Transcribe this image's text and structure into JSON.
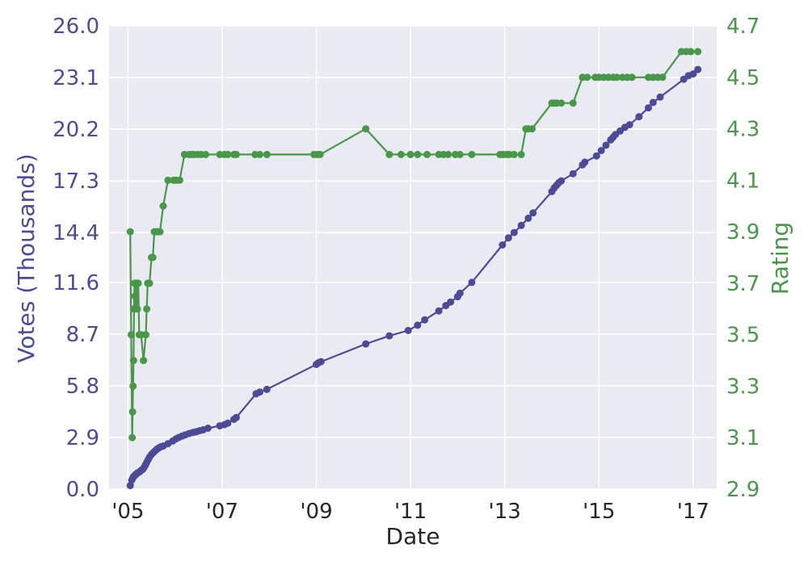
{
  "chart_data": {
    "type": "line",
    "xlabel": "Date",
    "ylabel_left": "Votes (Thousands)",
    "ylabel_right": "Rating",
    "x_ticks": [
      {
        "label": "'05",
        "year": 2005
      },
      {
        "label": "'07",
        "year": 2007
      },
      {
        "label": "'09",
        "year": 2009
      },
      {
        "label": "'11",
        "year": 2011
      },
      {
        "label": "'13",
        "year": 2013
      },
      {
        "label": "'15",
        "year": 2015
      },
      {
        "label": "'17",
        "year": 2017
      }
    ],
    "xlim": [
      2004.6,
      2017.5
    ],
    "y_left_ticks": [
      "0.0",
      "2.9",
      "5.8",
      "8.7",
      "11.6",
      "14.4",
      "17.3",
      "20.2",
      "23.1",
      "26.0"
    ],
    "ylim_left": [
      0,
      26.0
    ],
    "y_right_ticks": [
      "2.9",
      "3.1",
      "3.3",
      "3.5",
      "3.7",
      "3.9",
      "4.1",
      "4.3",
      "4.5",
      "4.7"
    ],
    "ylim_right": [
      2.9,
      4.7
    ],
    "grid": true,
    "colors": {
      "votes": "#4c4c96",
      "rating": "#4a964a",
      "background": "#eaeaf2",
      "grid": "#ffffff"
    },
    "series": [
      {
        "key": "votes",
        "axis": "left",
        "x": [
          2005.05,
          2005.08,
          2005.1,
          2005.12,
          2005.14,
          2005.16,
          2005.18,
          2005.2,
          2005.22,
          2005.25,
          2005.28,
          2005.31,
          2005.34,
          2005.37,
          2005.4,
          2005.43,
          2005.46,
          2005.5,
          2005.54,
          2005.58,
          2005.62,
          2005.66,
          2005.7,
          2005.75,
          2005.85,
          2005.95,
          2006.02,
          2006.08,
          2006.15,
          2006.22,
          2006.3,
          2006.38,
          2006.45,
          2006.52,
          2006.6,
          2006.7,
          2006.95,
          2007.05,
          2007.12,
          2007.25,
          2007.3,
          2007.72,
          2007.8,
          2007.95,
          2009.0,
          2009.05,
          2009.1,
          2010.05,
          2010.55,
          2010.95,
          2011.15,
          2011.3,
          2011.6,
          2011.75,
          2011.85,
          2012.0,
          2012.05,
          2012.3,
          2012.95,
          2013.08,
          2013.2,
          2013.35,
          2013.5,
          2013.6,
          2014.0,
          2014.05,
          2014.1,
          2014.15,
          2014.2,
          2014.45,
          2014.65,
          2014.7,
          2014.95,
          2015.05,
          2015.15,
          2015.25,
          2015.3,
          2015.35,
          2015.45,
          2015.55,
          2015.65,
          2015.85,
          2016.05,
          2016.15,
          2016.3,
          2016.8,
          2016.9,
          2017.0,
          2017.1
        ],
        "y": [
          0.2,
          0.5,
          0.6,
          0.7,
          0.75,
          0.8,
          0.85,
          0.9,
          0.93,
          0.98,
          1.05,
          1.1,
          1.2,
          1.35,
          1.5,
          1.65,
          1.8,
          1.95,
          2.05,
          2.15,
          2.25,
          2.32,
          2.38,
          2.42,
          2.55,
          2.7,
          2.82,
          2.9,
          2.98,
          3.05,
          3.12,
          3.18,
          3.22,
          3.28,
          3.33,
          3.42,
          3.55,
          3.62,
          3.7,
          3.92,
          4.02,
          5.35,
          5.45,
          5.6,
          7.0,
          7.1,
          7.15,
          8.15,
          8.6,
          8.9,
          9.2,
          9.5,
          10.0,
          10.3,
          10.5,
          10.8,
          11.0,
          11.6,
          13.7,
          14.1,
          14.4,
          14.8,
          15.2,
          15.5,
          16.7,
          16.9,
          17.05,
          17.2,
          17.3,
          17.7,
          18.2,
          18.35,
          18.7,
          19.0,
          19.3,
          19.6,
          19.75,
          19.9,
          20.1,
          20.3,
          20.45,
          20.9,
          21.4,
          21.7,
          22.0,
          23.0,
          23.2,
          23.3,
          23.55
        ]
      },
      {
        "key": "rating",
        "axis": "right",
        "x": [
          2005.05,
          2005.07,
          2005.09,
          2005.1,
          2005.11,
          2005.12,
          2005.13,
          2005.14,
          2005.15,
          2005.17,
          2005.18,
          2005.2,
          2005.22,
          2005.24,
          2005.28,
          2005.33,
          2005.38,
          2005.4,
          2005.42,
          2005.44,
          2005.46,
          2005.5,
          2005.53,
          2005.56,
          2005.6,
          2005.64,
          2005.68,
          2005.75,
          2005.85,
          2005.97,
          2006.02,
          2006.1,
          2006.2,
          2006.3,
          2006.35,
          2006.4,
          2006.48,
          2006.55,
          2006.65,
          2006.95,
          2007.05,
          2007.12,
          2007.25,
          2007.3,
          2007.7,
          2007.8,
          2007.95,
          2008.95,
          2009.02,
          2009.08,
          2010.05,
          2010.55,
          2010.8,
          2011.0,
          2011.15,
          2011.35,
          2011.6,
          2011.7,
          2011.8,
          2011.95,
          2012.05,
          2012.3,
          2012.9,
          2012.97,
          2013.05,
          2013.1,
          2013.2,
          2013.35,
          2013.45,
          2013.5,
          2013.58,
          2014.0,
          2014.05,
          2014.1,
          2014.2,
          2014.45,
          2014.65,
          2014.75,
          2014.92,
          2015.0,
          2015.1,
          2015.2,
          2015.3,
          2015.38,
          2015.5,
          2015.6,
          2015.7,
          2016.05,
          2016.15,
          2016.25,
          2016.35,
          2016.75,
          2016.85,
          2016.95,
          2017.1
        ],
        "y": [
          3.9,
          3.5,
          3.1,
          3.2,
          3.3,
          3.4,
          3.6,
          3.7,
          3.65,
          3.6,
          3.7,
          3.6,
          3.7,
          3.5,
          3.5,
          3.4,
          3.5,
          3.6,
          3.7,
          3.7,
          3.7,
          3.8,
          3.8,
          3.9,
          3.9,
          3.9,
          3.9,
          4.0,
          4.1,
          4.1,
          4.1,
          4.1,
          4.2,
          4.2,
          4.2,
          4.2,
          4.2,
          4.2,
          4.2,
          4.2,
          4.2,
          4.2,
          4.2,
          4.2,
          4.2,
          4.2,
          4.2,
          4.2,
          4.2,
          4.2,
          4.3,
          4.2,
          4.2,
          4.2,
          4.2,
          4.2,
          4.2,
          4.2,
          4.2,
          4.2,
          4.2,
          4.2,
          4.2,
          4.2,
          4.2,
          4.2,
          4.2,
          4.2,
          4.3,
          4.3,
          4.3,
          4.4,
          4.4,
          4.4,
          4.4,
          4.4,
          4.5,
          4.5,
          4.5,
          4.5,
          4.5,
          4.5,
          4.5,
          4.5,
          4.5,
          4.5,
          4.5,
          4.5,
          4.5,
          4.5,
          4.5,
          4.6,
          4.6,
          4.6,
          4.6
        ]
      }
    ]
  }
}
